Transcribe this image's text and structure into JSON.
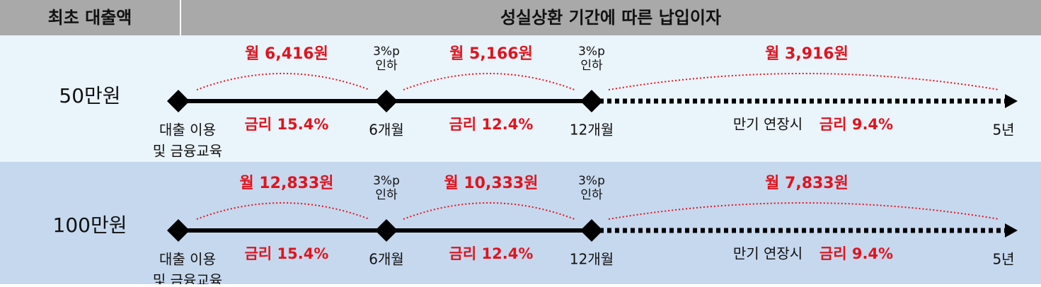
{
  "header": {
    "amount_column": "최초 대출액",
    "interest_column": "성실상환 기간에 따른 납입이자"
  },
  "rows": [
    {
      "amount": "50만원",
      "payments": [
        "월 6,416원",
        "월 5,166원",
        "월 3,916원"
      ],
      "cuts": [
        [
          "3%p",
          "인하"
        ],
        [
          "3%p",
          "인하"
        ]
      ],
      "rates": [
        "금리 15.4%",
        "금리 12.4%",
        "금리 9.4%"
      ],
      "extension": "만기 연장시",
      "milestones": [
        [
          "대출 이용",
          "및 금융교육"
        ],
        [
          "6개월"
        ],
        [
          "12개월"
        ],
        [
          "5년"
        ]
      ]
    },
    {
      "amount": "100만원",
      "payments": [
        "월 12,833원",
        "월 10,333원",
        "월 7,833원"
      ],
      "cuts": [
        [
          "3%p",
          "인하"
        ],
        [
          "3%p",
          "인하"
        ]
      ],
      "rates": [
        "금리 15.4%",
        "금리 12.4%",
        "금리 9.4%"
      ],
      "extension": "만기 연장시",
      "milestones": [
        [
          "대출 이용",
          "및 금융교육"
        ],
        [
          "6개월"
        ],
        [
          "12개월"
        ],
        [
          "5년"
        ]
      ]
    }
  ]
}
